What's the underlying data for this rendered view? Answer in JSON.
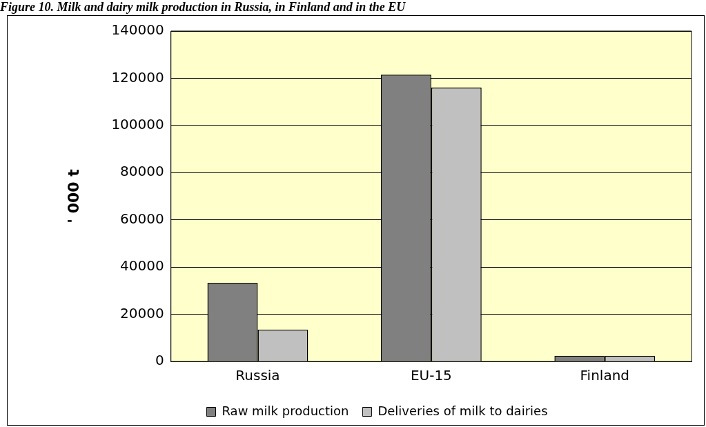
{
  "chart_data": {
    "type": "bar",
    "title": "Figure 10. Milk and dairy milk production in Russia, in Finland and in the EU",
    "ylabel": "' 000 t",
    "categories": [
      "Russia",
      "EU-15",
      "Finland"
    ],
    "series": [
      {
        "name": "Raw milk production",
        "color": "#808080",
        "values": [
          33300,
          121500,
          2400
        ]
      },
      {
        "name": "Deliveries of milk to dairies",
        "color": "#c0c0c0",
        "values": [
          13500,
          116000,
          2400
        ]
      }
    ],
    "ylim": [
      0,
      140000
    ],
    "yticks": [
      0,
      20000,
      40000,
      60000,
      80000,
      100000,
      120000,
      140000
    ],
    "grid": "y",
    "legend": "bottom"
  }
}
